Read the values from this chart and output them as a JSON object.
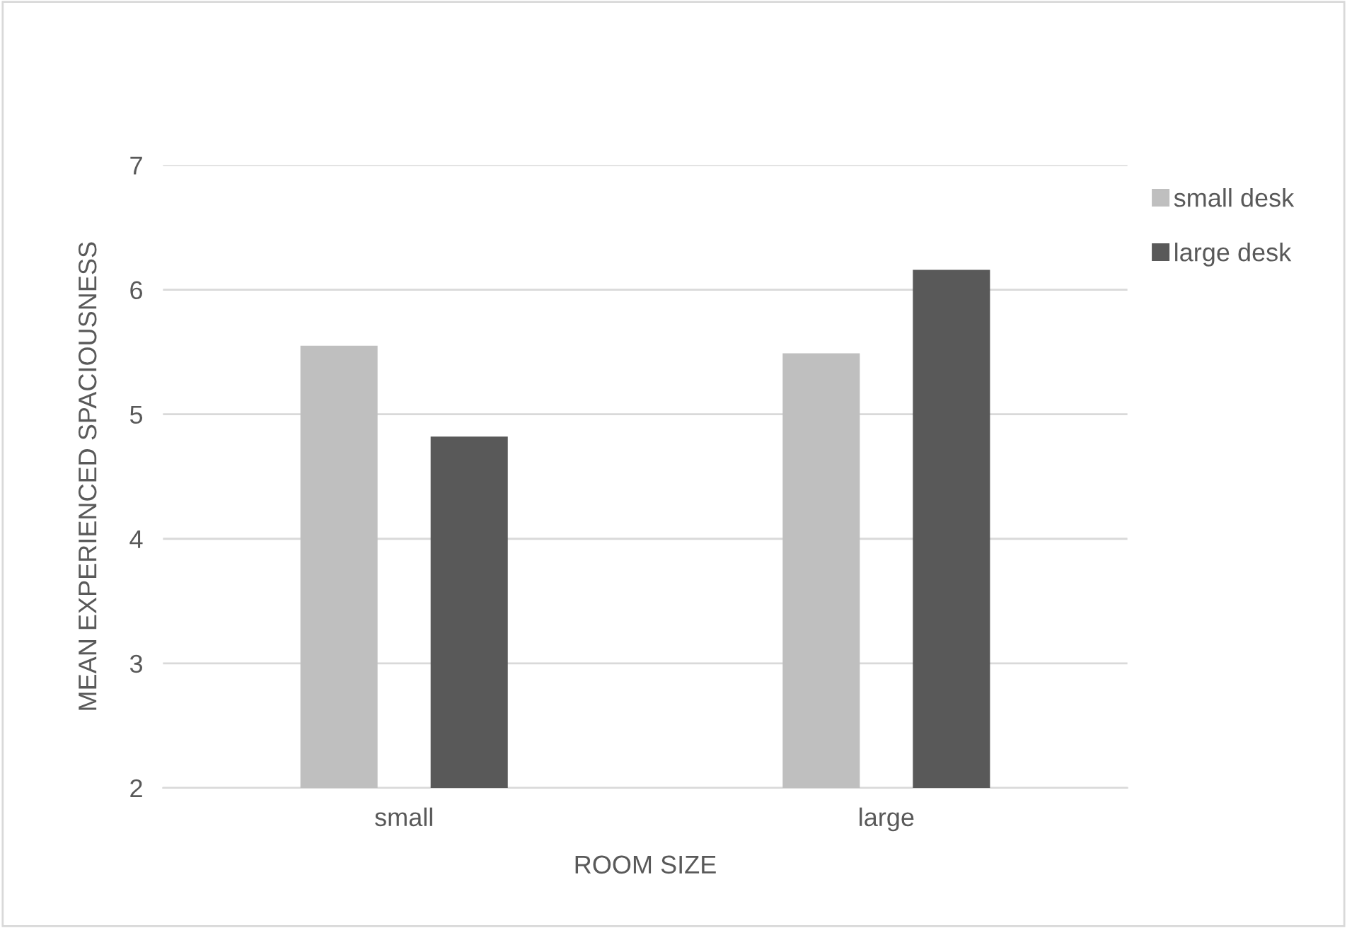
{
  "chart_data": {
    "type": "bar",
    "xlabel": "ROOM SIZE",
    "ylabel": "MEAN EXPERIENCED SPACIOUSNESS",
    "categories": [
      "small",
      "large"
    ],
    "series": [
      {
        "name": "small desk",
        "color": "#bfbfbf",
        "values": [
          5.55,
          5.49
        ]
      },
      {
        "name": "large desk",
        "color": "#595959",
        "values": [
          4.82,
          6.16
        ]
      }
    ],
    "ylim": [
      2,
      7
    ],
    "yticks": [
      2,
      3,
      4,
      5,
      6,
      7
    ],
    "grid": "y",
    "legend": "top right"
  }
}
